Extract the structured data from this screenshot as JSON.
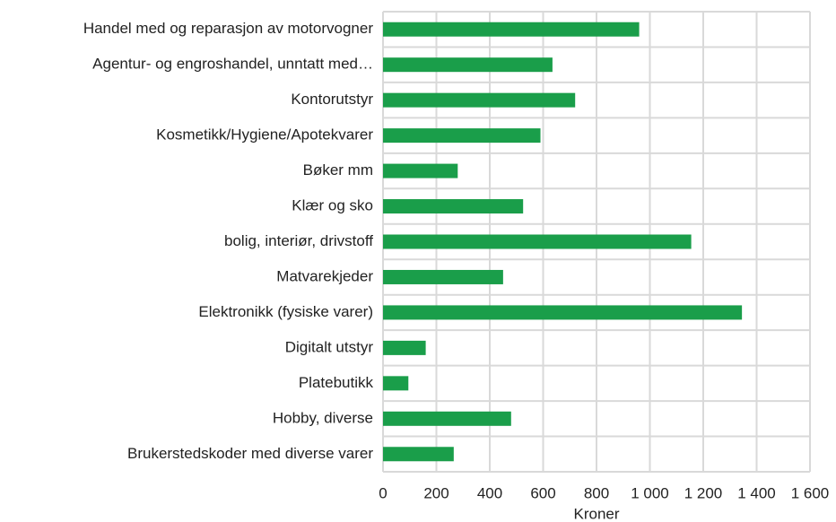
{
  "chart_data": {
    "type": "barh",
    "x_label": "Kroner",
    "categories": [
      "Handel med og reparasjon av motorvogner",
      "Agentur- og engroshandel, unntatt med…",
      "Kontorutstyr",
      "Kosmetikk/Hygiene/Apotekvarer",
      "Bøker mm ",
      "Klær og sko",
      "bolig, interiør, drivstoff",
      "Matvarekjeder",
      "Elektronikk (fysiske varer)",
      "Digitalt utstyr ",
      "Platebutikk",
      "Hobby, diverse",
      "Brukerstedskoder med diverse varer"
    ],
    "values": [
      960,
      635,
      720,
      590,
      280,
      525,
      1155,
      450,
      1345,
      160,
      95,
      480,
      265
    ],
    "color": "#1a9e4a",
    "xlim": [
      0,
      1600
    ],
    "xticks": [
      0,
      200,
      400,
      600,
      800,
      {
        "value": 1000,
        "label": "1 000"
      },
      {
        "value": 1200,
        "label": "1 200"
      },
      {
        "value": 1400,
        "label": "1 400"
      },
      {
        "value": 1600,
        "label": "1 600"
      }
    ],
    "grid": true
  }
}
